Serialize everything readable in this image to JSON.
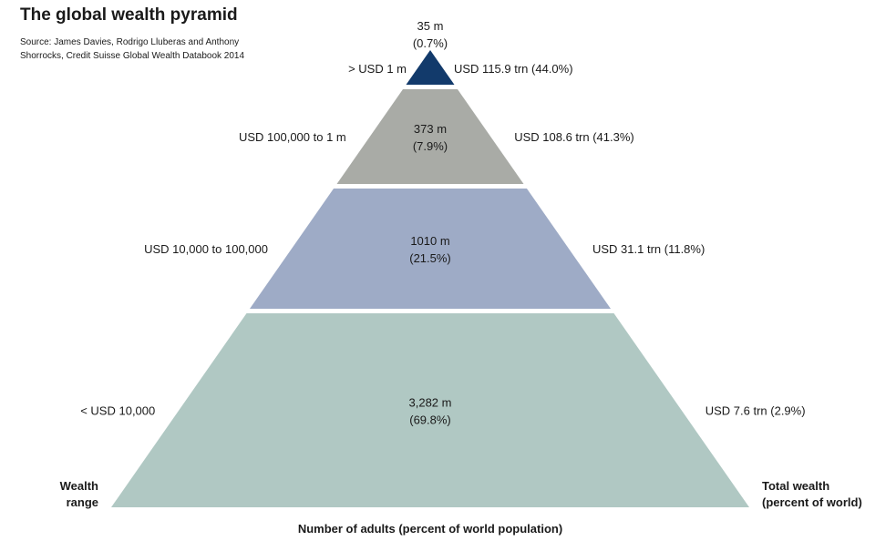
{
  "header": {
    "title": "The global wealth pyramid",
    "source": "Source: James Davies, Rodrigo Lluberas and Anthony Shorrocks, Credit Suisse Global Wealth Databook 2014"
  },
  "chart_data": {
    "type": "pyramid",
    "xlabel": "Number of adults (percent of world population)",
    "left_axis_label": [
      "Wealth",
      "range"
    ],
    "right_axis_label": [
      "Total wealth",
      "(percent of world)"
    ],
    "tiers": [
      {
        "wealth_range": "> USD 1 m",
        "adults": "35 m",
        "adults_pct": "(0.7%)",
        "adults_value_m": 35,
        "adults_share": 0.7,
        "total_wealth": "USD 115.9 trn (44.0%)",
        "wealth_trn": 115.9,
        "wealth_share": 44.0,
        "color": "#123a6b"
      },
      {
        "wealth_range": "USD 100,000 to 1 m",
        "adults": "373 m",
        "adults_pct": "(7.9%)",
        "adults_value_m": 373,
        "adults_share": 7.9,
        "total_wealth": "USD 108.6 trn (41.3%)",
        "wealth_trn": 108.6,
        "wealth_share": 41.3,
        "color": "#a9aba6"
      },
      {
        "wealth_range": "USD 10,000 to 100,000",
        "adults": "1010 m",
        "adults_pct": "(21.5%)",
        "adults_value_m": 1010,
        "adults_share": 21.5,
        "total_wealth": "USD 31.1 trn (11.8%)",
        "wealth_trn": 31.1,
        "wealth_share": 11.8,
        "color": "#9eabc6"
      },
      {
        "wealth_range": "< USD 10,000",
        "adults": "3,282 m",
        "adults_pct": "(69.8%)",
        "adults_value_m": 3282,
        "adults_share": 69.8,
        "total_wealth": "USD 7.6 trn (2.9%)",
        "wealth_trn": 7.6,
        "wealth_share": 2.9,
        "color": "#b0c8c3"
      }
    ]
  }
}
